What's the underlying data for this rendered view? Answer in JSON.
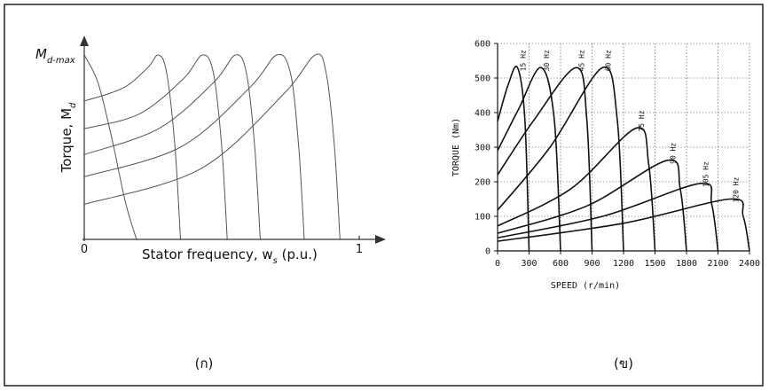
{
  "chart_data": [
    {
      "type": "line",
      "ylabel": {
        "main": "Torque, M",
        "sub": "d"
      },
      "ymax_label": {
        "main": "M",
        "sub": "d-max"
      },
      "xlabel": {
        "main": "Stator frequency, w",
        "sub": "s",
        "tail": " (p.u.)"
      },
      "xlim": [
        0,
        1
      ],
      "ylim": [
        0,
        1.1
      ],
      "xticks": [
        0,
        1
      ],
      "color": "#555",
      "grid": false,
      "caption": "(ก)",
      "series": [
        {
          "x": [
            0,
            0.05,
            0.1,
            0.15,
            0.19
          ],
          "values": [
            1.0,
            0.85,
            0.55,
            0.2,
            0
          ]
        },
        {
          "x": [
            0,
            0.14,
            0.23,
            0.27,
            0.3,
            0.33,
            0.35
          ],
          "values": [
            0.75,
            0.82,
            0.93,
            1.0,
            0.9,
            0.5,
            0
          ]
        },
        {
          "x": [
            0,
            0.2,
            0.36,
            0.43,
            0.47,
            0.5,
            0.52
          ],
          "values": [
            0.6,
            0.68,
            0.87,
            1.0,
            0.9,
            0.5,
            0
          ]
        },
        {
          "x": [
            0,
            0.27,
            0.47,
            0.55,
            0.59,
            0.62,
            0.64
          ],
          "values": [
            0.46,
            0.6,
            0.85,
            1.0,
            0.9,
            0.5,
            0
          ]
        },
        {
          "x": [
            0,
            0.35,
            0.6,
            0.7,
            0.75,
            0.78,
            0.8
          ],
          "values": [
            0.34,
            0.5,
            0.82,
            1.0,
            0.9,
            0.5,
            0
          ]
        },
        {
          "x": [
            0,
            0.42,
            0.72,
            0.84,
            0.88,
            0.91,
            0.93
          ],
          "values": [
            0.19,
            0.38,
            0.78,
            1.0,
            0.9,
            0.5,
            0
          ]
        }
      ]
    },
    {
      "type": "line",
      "ylabel": "TORQUE (Nm)",
      "xlabel": "SPEED (r/min)",
      "xlim": [
        0,
        2400
      ],
      "ylim": [
        0,
        600
      ],
      "xticks": [
        0,
        300,
        600,
        900,
        1200,
        1500,
        1800,
        2100,
        2400
      ],
      "yticks": [
        0,
        100,
        200,
        300,
        400,
        500,
        600
      ],
      "color": "#111",
      "grid": true,
      "caption": "(ข)",
      "series": [
        {
          "name": "15 Hz",
          "x": [
            0,
            100,
            190,
            260,
            300
          ],
          "values": [
            375,
            480,
            530,
            380,
            0
          ]
        },
        {
          "name": "30 Hz",
          "x": [
            0,
            200,
            415,
            540,
            600
          ],
          "values": [
            290,
            410,
            530,
            380,
            0
          ]
        },
        {
          "name": "45 Hz",
          "x": [
            0,
            350,
            750,
            850,
            900
          ],
          "values": [
            220,
            380,
            530,
            380,
            0
          ]
        },
        {
          "name": "60 Hz",
          "x": [
            0,
            500,
            1000,
            1140,
            1200
          ],
          "values": [
            118,
            300,
            530,
            380,
            0
          ]
        },
        {
          "name": "75 Hz",
          "x": [
            0,
            700,
            1320,
            1440,
            1500
          ],
          "values": [
            72,
            180,
            355,
            250,
            0
          ]
        },
        {
          "name": "90 Hz",
          "x": [
            0,
            850,
            1620,
            1740,
            1800
          ],
          "values": [
            51,
            130,
            262,
            180,
            0
          ]
        },
        {
          "name": "105 Hz",
          "x": [
            0,
            1000,
            1930,
            2040,
            2100
          ],
          "values": [
            38,
            100,
            195,
            135,
            0
          ]
        },
        {
          "name": "120 Hz",
          "x": [
            0,
            1200,
            2220,
            2340,
            2400
          ],
          "values": [
            28,
            80,
            150,
            100,
            0
          ]
        }
      ]
    }
  ]
}
